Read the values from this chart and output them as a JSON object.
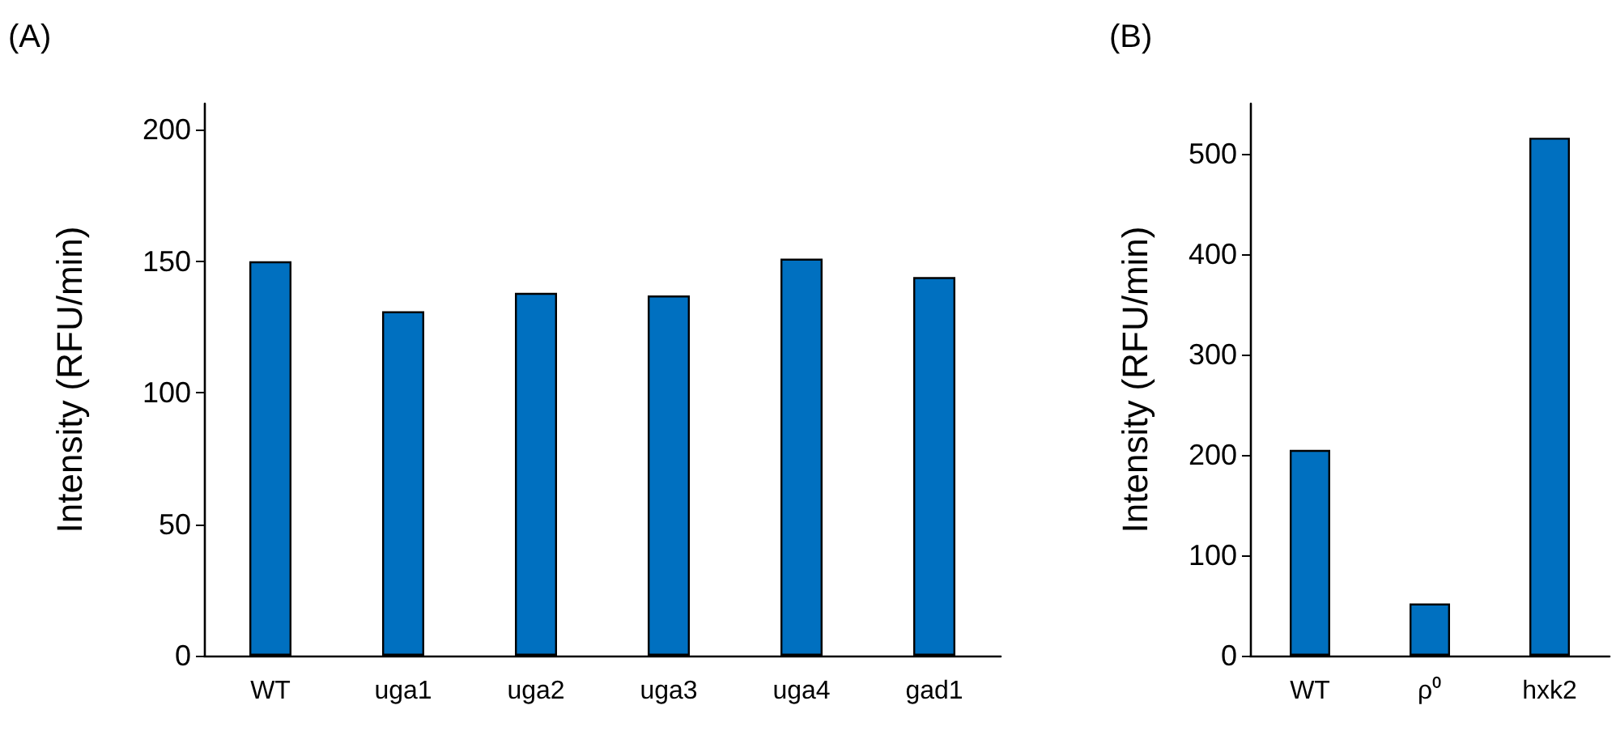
{
  "chart_data": [
    {
      "type": "bar",
      "title": "(A)",
      "ylabel": "Intensity (RFU/min)",
      "categories": [
        "WT",
        "uga1",
        "uga2",
        "uga3",
        "uga4",
        "gad1"
      ],
      "values": [
        150,
        131,
        138,
        137,
        151,
        144
      ],
      "color": "#0070c0",
      "ylim": [
        0,
        210
      ],
      "yticks": [
        0,
        50,
        100,
        150,
        200
      ],
      "grid": false
    },
    {
      "type": "bar",
      "title": "(B)",
      "ylabel": "Intensity (RFU/min)",
      "categories": [
        "WT",
        "ρ⁰",
        "hxk2"
      ],
      "values": [
        205,
        52,
        516
      ],
      "color": "#0070c0",
      "ylim": [
        0,
        550
      ],
      "yticks": [
        0,
        100,
        200,
        300,
        400,
        500
      ],
      "grid": false
    }
  ]
}
